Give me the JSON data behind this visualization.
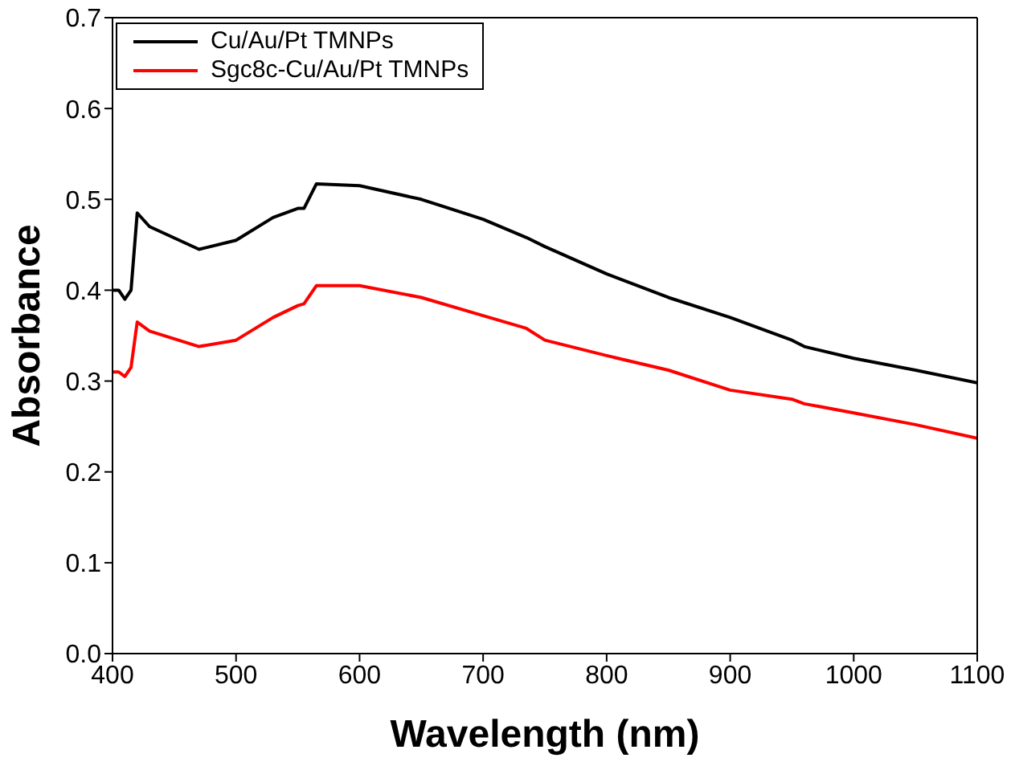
{
  "chart_data": {
    "type": "line",
    "xlabel": "Wavelength (nm)",
    "ylabel": "Absorbance",
    "x": [
      400,
      405,
      410,
      415,
      420,
      430,
      470,
      500,
      530,
      550,
      555,
      565,
      600,
      650,
      700,
      735,
      750,
      800,
      850,
      900,
      950,
      960,
      1000,
      1050,
      1100
    ],
    "series": [
      {
        "name": "Cu/Au/Pt TMNPs",
        "color": "#000000",
        "values": [
          0.4,
          0.4,
          0.39,
          0.4,
          0.485,
          0.47,
          0.445,
          0.455,
          0.48,
          0.49,
          0.49,
          0.517,
          0.515,
          0.5,
          0.478,
          0.458,
          0.448,
          0.418,
          0.392,
          0.37,
          0.345,
          0.338,
          0.325,
          0.312,
          0.298
        ]
      },
      {
        "name": "Sgc8c-Cu/Au/Pt TMNPs",
        "color": "#ff0000",
        "values": [
          0.31,
          0.31,
          0.305,
          0.315,
          0.365,
          0.355,
          0.338,
          0.345,
          0.37,
          0.383,
          0.385,
          0.405,
          0.405,
          0.392,
          0.372,
          0.358,
          0.345,
          0.328,
          0.312,
          0.29,
          0.28,
          0.275,
          0.265,
          0.252,
          0.237
        ]
      }
    ],
    "xlim": [
      400,
      1100
    ],
    "xticks": [
      400,
      500,
      600,
      700,
      800,
      900,
      1000,
      1100
    ],
    "ylim": [
      0,
      0.7
    ],
    "yticks": [
      {
        "value": 0,
        "label": "0.0"
      },
      0.1,
      0.2,
      0.3,
      0.4,
      0.5,
      0.6,
      0.7
    ],
    "legend": "top left",
    "grid": false,
    "marker": "none",
    "line_style": "solid"
  }
}
